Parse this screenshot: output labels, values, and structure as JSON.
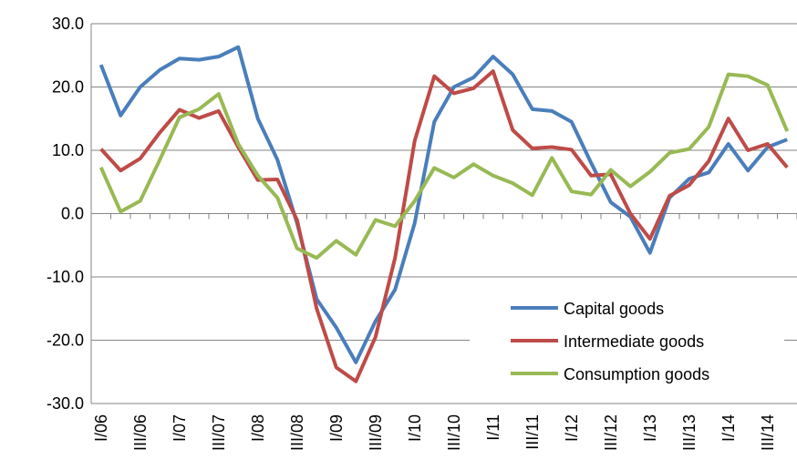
{
  "chart_data": {
    "type": "line",
    "categories": [
      "I/06",
      null,
      "III/06",
      null,
      "I/07",
      null,
      "III/07",
      null,
      "I/08",
      null,
      "III/08",
      null,
      "I/09",
      null,
      "III/09",
      null,
      "I/10",
      null,
      "III/10",
      null,
      "I/11",
      null,
      "III/11",
      null,
      "I/12",
      null,
      "III/12",
      null,
      "I/13",
      null,
      "III/13",
      null,
      "I/14",
      null,
      "III/14",
      null
    ],
    "series": [
      {
        "name": "Capital goods",
        "color": "#4a7ebb",
        "values": [
          23.5,
          15.5,
          20,
          22.7,
          24.5,
          24.3,
          24.8,
          26.3,
          15,
          8.5,
          -1.5,
          -13.5,
          -18,
          -23.5,
          -17,
          -12,
          -1.5,
          14.5,
          20,
          21.5,
          24.8,
          22,
          16.5,
          16.2,
          14.5,
          8,
          1.8,
          -0.5,
          -6.2,
          2.5,
          5.5,
          6.5,
          11,
          6.8,
          10.5,
          11.7
        ]
      },
      {
        "name": "Intermediate goods",
        "color": "#be4b48",
        "values": [
          10.2,
          6.8,
          8.7,
          12.8,
          16.4,
          15.1,
          16.2,
          10.5,
          5.3,
          5.4,
          -1,
          -15,
          -24.3,
          -26.5,
          -19.5,
          -7,
          11.5,
          21.7,
          19,
          19.8,
          22.5,
          13.2,
          10.3,
          10.5,
          10.1,
          6,
          6.2,
          0,
          -4,
          2.8,
          4.5,
          8.3,
          15,
          10,
          11,
          7.3
        ]
      },
      {
        "name": "Consumption goods",
        "color": "#98b954",
        "values": [
          7.3,
          0.3,
          2,
          8.5,
          15.2,
          16.5,
          18.9,
          11,
          6,
          2.5,
          -5.5,
          -7,
          -4.3,
          -6.5,
          -1,
          -2,
          2,
          7.2,
          5.7,
          7.8,
          6,
          4.8,
          2.9,
          8.8,
          3.5,
          3,
          6.9,
          4.3,
          6.6,
          9.6,
          10.2,
          13.7,
          22,
          21.7,
          20.3,
          13
        ]
      }
    ],
    "ylim": [
      -30,
      30
    ],
    "yticks": [
      {
        "value": -30,
        "label": "-30.0"
      },
      {
        "value": -20,
        "label": "-20.0"
      },
      {
        "value": -10,
        "label": "-10.0"
      },
      {
        "value": 0,
        "label": "0.0"
      },
      {
        "value": 10,
        "label": "10.0"
      },
      {
        "value": 20,
        "label": "20.0"
      },
      {
        "value": 30,
        "label": "30.0"
      }
    ],
    "grid": true,
    "legend": "lower right"
  }
}
